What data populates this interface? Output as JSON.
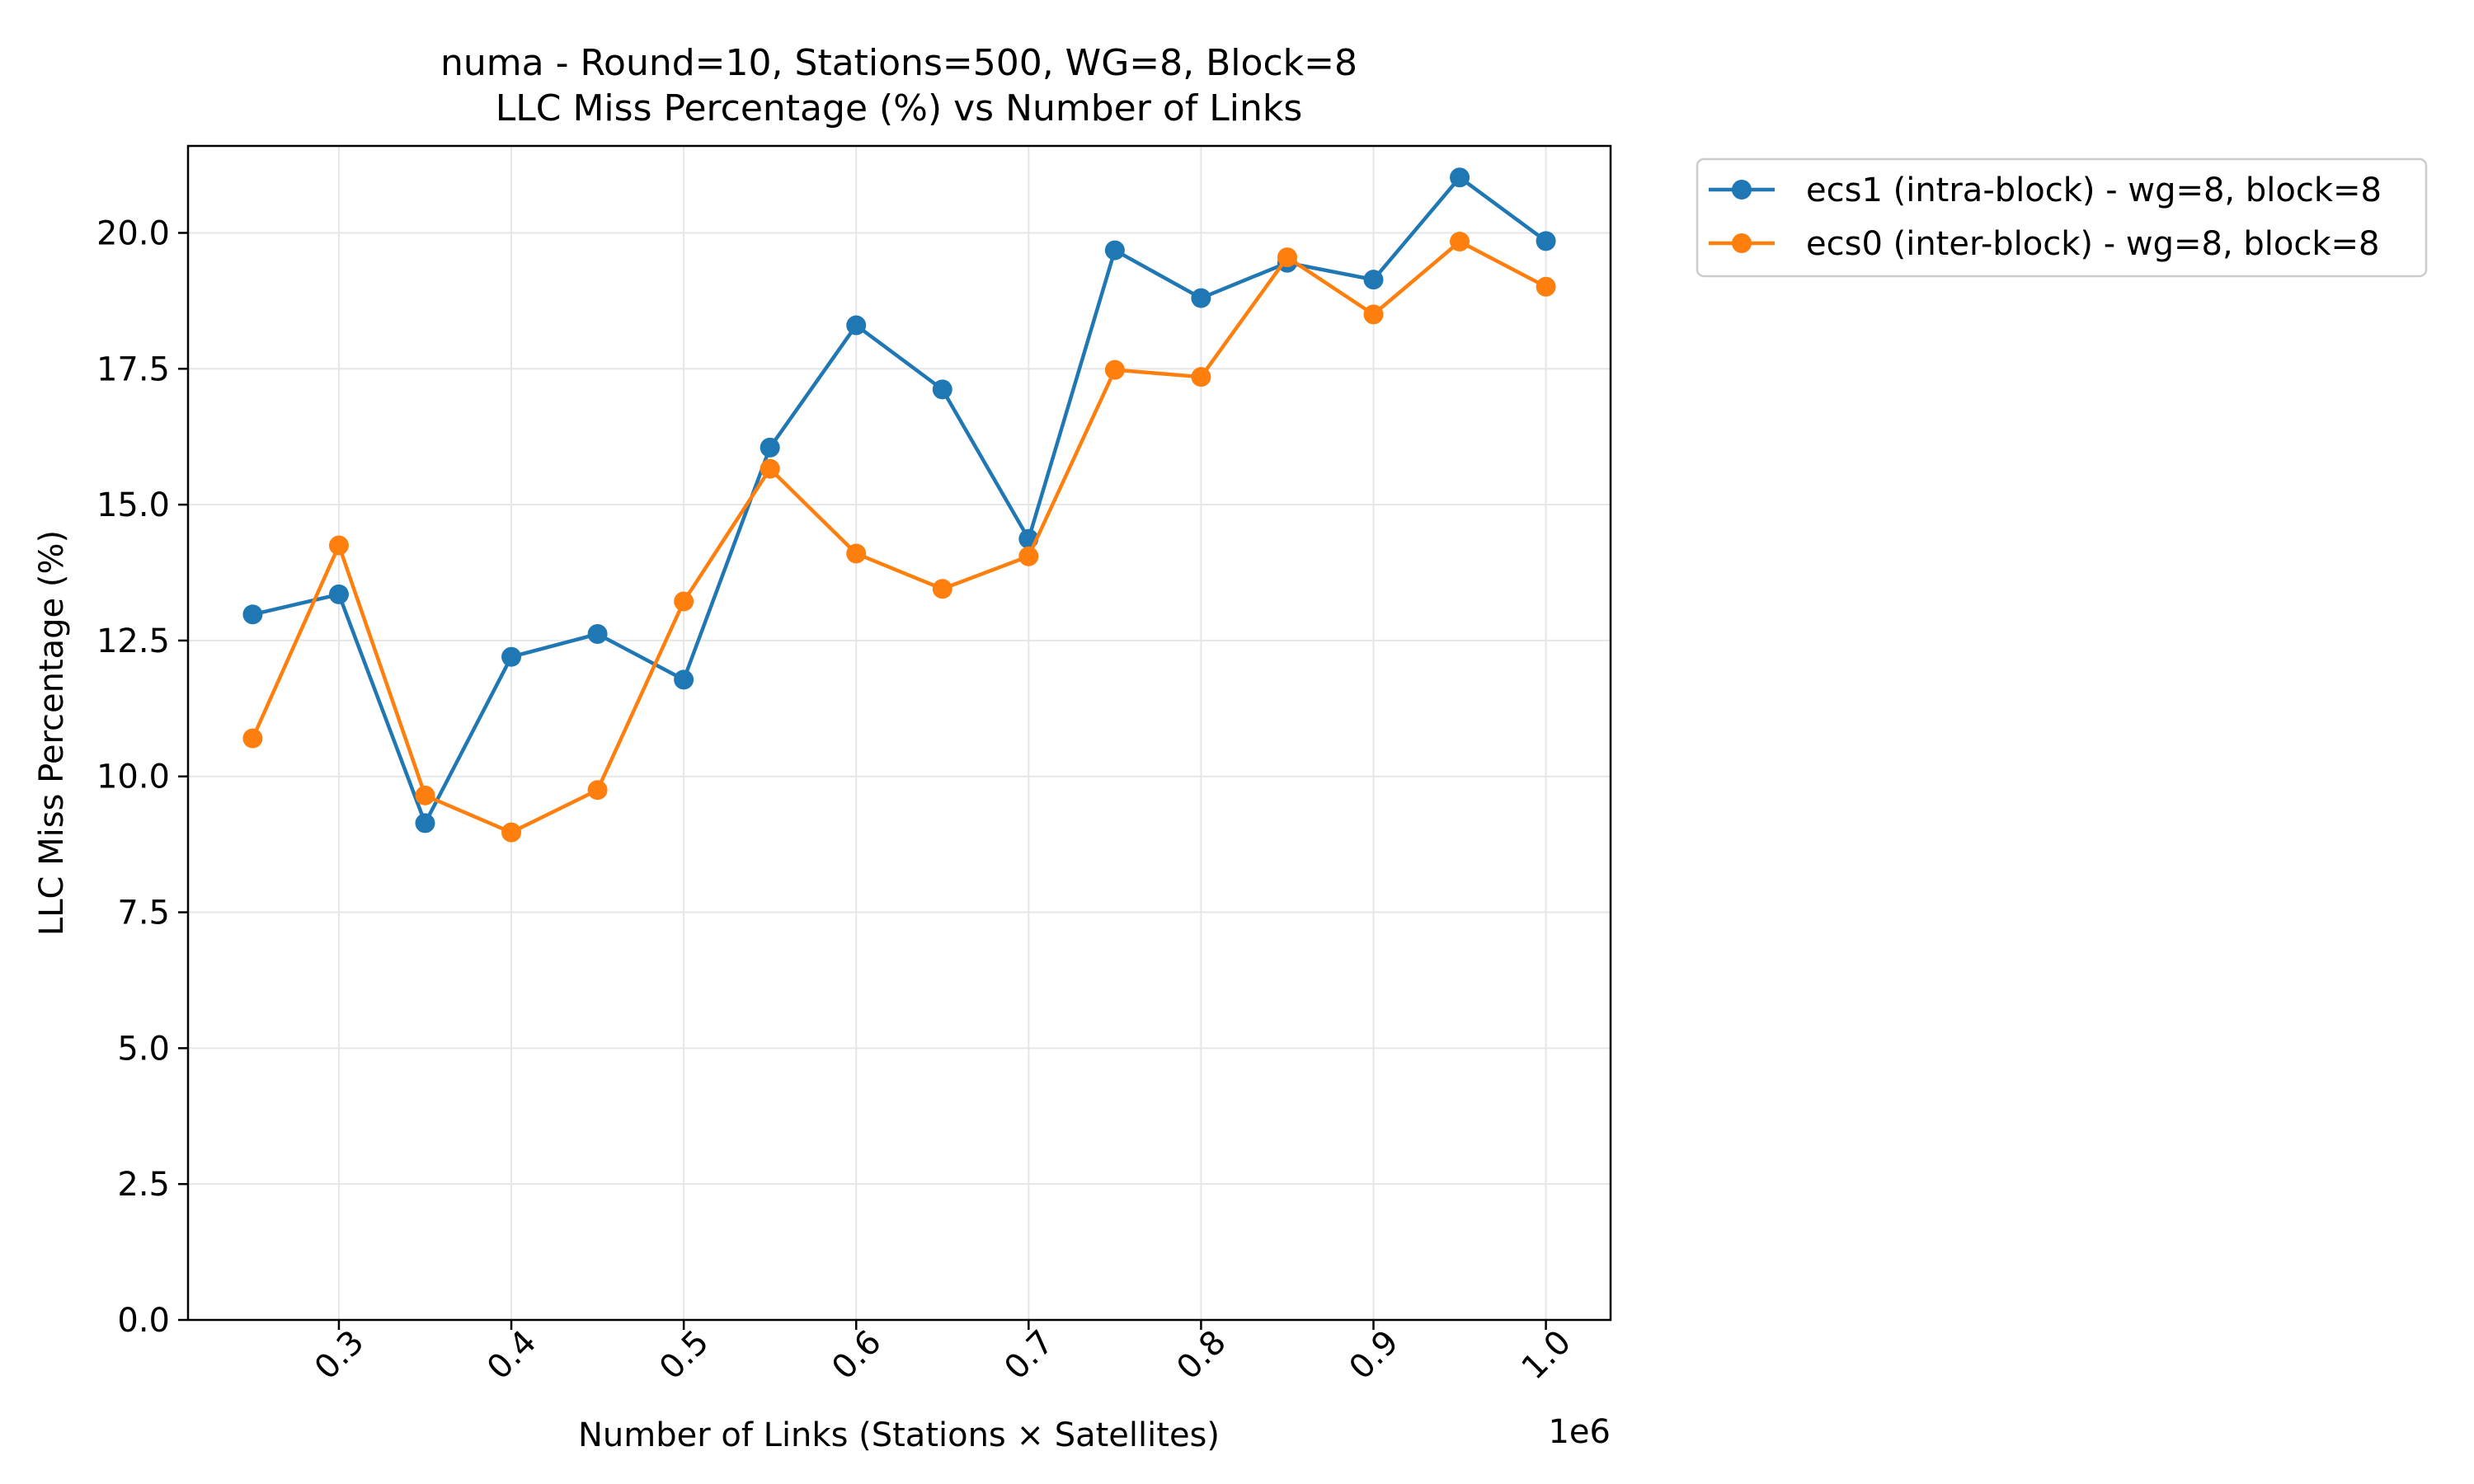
{
  "chart_data": {
    "type": "line",
    "title_line1": "numa - Round=10, Stations=500, WG=8, Block=8",
    "title_line2": "LLC Miss Percentage (%) vs Number of Links",
    "xlabel": "Number of Links (Stations × Satellites)",
    "ylabel": "LLC Miss Percentage (%)",
    "x_offset_label": "1e6",
    "xlim": [
      0.2125,
      1.0375
    ],
    "ylim": [
      0,
      21.6
    ],
    "xticks": [
      0.3,
      0.4,
      0.5,
      0.6,
      0.7,
      0.8,
      0.9,
      1.0
    ],
    "xtick_labels": [
      "0.3",
      "0.4",
      "0.5",
      "0.6",
      "0.7",
      "0.8",
      "0.9",
      "1.0"
    ],
    "yticks": [
      0,
      2.5,
      5,
      7.5,
      10,
      12.5,
      15,
      17.5,
      20
    ],
    "ytick_labels": [
      "0.0",
      "2.5",
      "5.0",
      "7.5",
      "10.0",
      "12.5",
      "15.0",
      "17.5",
      "20.0"
    ],
    "grid": true,
    "legend_position": "outside-top-right",
    "x": [
      0.25,
      0.3,
      0.35,
      0.4,
      0.45,
      0.5,
      0.55,
      0.6,
      0.65,
      0.7,
      0.75,
      0.8,
      0.85,
      0.9,
      0.95,
      1.0
    ],
    "series": [
      {
        "name": "ecs1 (intra-block) - wg=8, block=8",
        "color": "#1f77b4",
        "values": [
          12.98,
          13.35,
          9.14,
          12.2,
          12.62,
          11.78,
          16.05,
          18.3,
          17.12,
          14.37,
          19.68,
          18.8,
          19.45,
          19.14,
          21.02,
          19.85
        ]
      },
      {
        "name": "ecs0 (inter-block) - wg=8, block=8",
        "color": "#ff7f0e",
        "values": [
          10.7,
          14.25,
          9.65,
          8.97,
          9.75,
          13.22,
          15.66,
          14.1,
          13.45,
          14.05,
          17.48,
          17.35,
          19.55,
          18.5,
          19.84,
          19.01
        ]
      }
    ]
  }
}
